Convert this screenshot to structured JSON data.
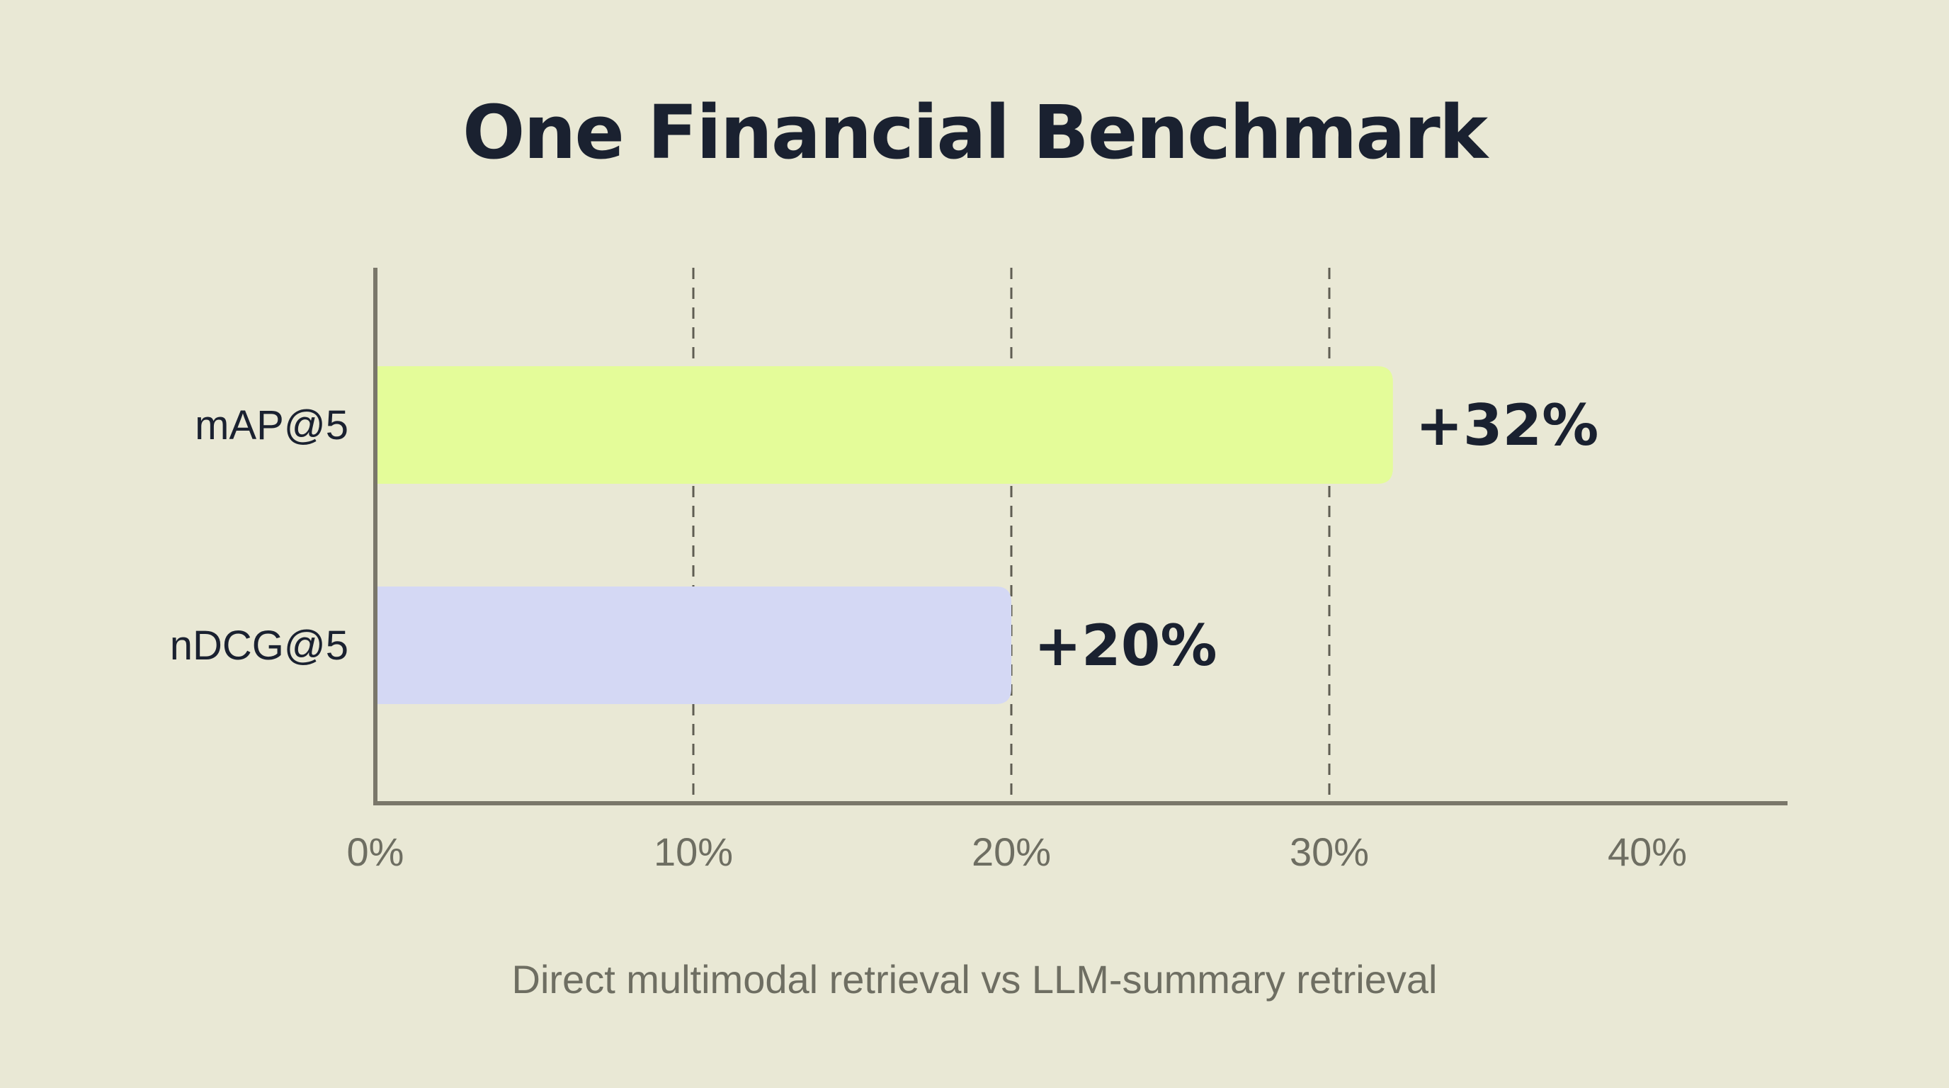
{
  "chart_data": {
    "type": "bar",
    "orientation": "horizontal",
    "title": "One Financial Benchmark",
    "subtitle": "Direct multimodal retrieval vs LLM-summary retrieval",
    "categories": [
      "mAP@5",
      "nDCG@5"
    ],
    "values": [
      32,
      20
    ],
    "data_labels": [
      "+32%",
      "+20%"
    ],
    "bar_colors": [
      "#e4fc99",
      "#d4d8f4"
    ],
    "xlim": [
      0,
      40
    ],
    "xticks": [
      0,
      10,
      20,
      30,
      40
    ],
    "xtick_labels": [
      "0%",
      "10%",
      "20%",
      "30%",
      "40%"
    ],
    "gridlines": "vertical dashed at 10%, 20%, 30%",
    "legend": "none",
    "colors": {
      "background": "#e9e8d5",
      "axis": "#7a776a",
      "title": "#1a2130",
      "value_label": "#1a2130",
      "category_label": "#1a2130",
      "tick_label": "#6e6e62",
      "gridline": "#5f5d52"
    }
  }
}
